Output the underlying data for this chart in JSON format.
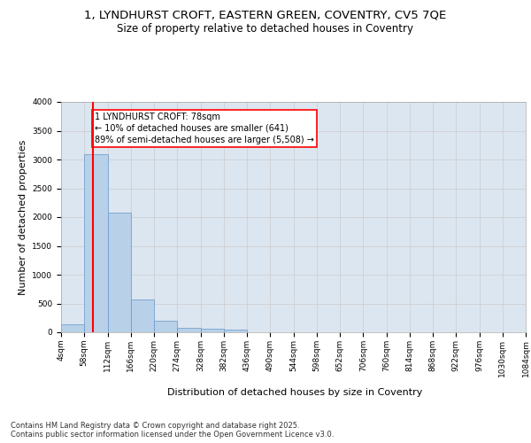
{
  "title_line1": "1, LYNDHURST CROFT, EASTERN GREEN, COVENTRY, CV5 7QE",
  "title_line2": "Size of property relative to detached houses in Coventry",
  "xlabel": "Distribution of detached houses by size in Coventry",
  "ylabel": "Number of detached properties",
  "bar_color": "#b8d0e8",
  "bar_edge_color": "#6699cc",
  "grid_color": "#cccccc",
  "bg_color": "#dce6f0",
  "vline_x": 78,
  "vline_color": "red",
  "annotation_text": "1 LYNDHURST CROFT: 78sqm\n← 10% of detached houses are smaller (641)\n89% of semi-detached houses are larger (5,508) →",
  "annotation_box_color": "red",
  "footer_text": "Contains HM Land Registry data © Crown copyright and database right 2025.\nContains public sector information licensed under the Open Government Licence v3.0.",
  "bin_edges": [
    4,
    58,
    112,
    166,
    220,
    274,
    328,
    382,
    436,
    490,
    544,
    598,
    652,
    706,
    760,
    814,
    868,
    922,
    976,
    1030,
    1084
  ],
  "bar_heights": [
    140,
    3100,
    2080,
    570,
    200,
    75,
    55,
    45,
    0,
    0,
    0,
    0,
    0,
    0,
    0,
    0,
    0,
    0,
    0,
    0
  ],
  "ylim": [
    0,
    4000
  ],
  "yticks": [
    0,
    500,
    1000,
    1500,
    2000,
    2500,
    3000,
    3500,
    4000
  ],
  "title_fontsize": 9.5,
  "subtitle_fontsize": 8.5,
  "axis_label_fontsize": 8,
  "tick_fontsize": 6.5,
  "footer_fontsize": 6,
  "annotation_fontsize": 7
}
